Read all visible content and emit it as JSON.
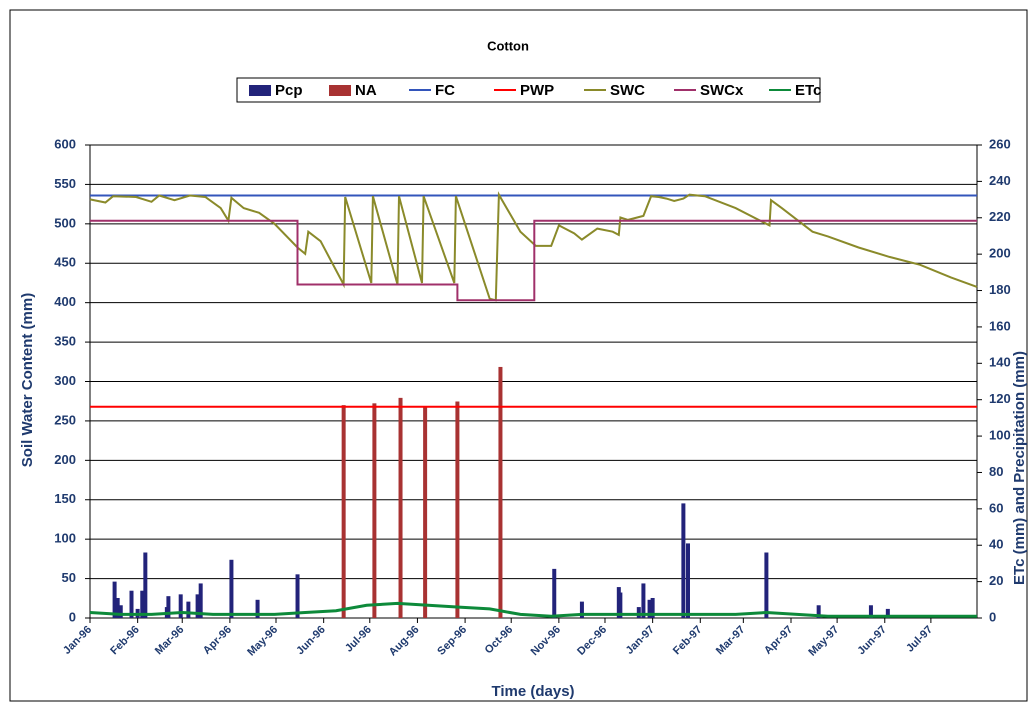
{
  "chart_data": {
    "type": "combo",
    "title": "Cotton",
    "xlabel": "Time (days)",
    "ylabel": "Soil Water Content (mm)",
    "y2label": "ETc (mm) and Precipitation (mm)",
    "xlim": [
      0,
      577
    ],
    "xticks": [
      {
        "value": 0,
        "label": "Jan-96"
      },
      {
        "value": 31,
        "label": "Feb-96"
      },
      {
        "value": 60,
        "label": "Mar-96"
      },
      {
        "value": 91,
        "label": "Apr-96"
      },
      {
        "value": 121,
        "label": "May-96"
      },
      {
        "value": 152,
        "label": "Jun-96"
      },
      {
        "value": 182,
        "label": "Jul-96"
      },
      {
        "value": 213,
        "label": "Aug-96"
      },
      {
        "value": 244,
        "label": "Sep-96"
      },
      {
        "value": 274,
        "label": "Oct-96"
      },
      {
        "value": 305,
        "label": "Nov-96"
      },
      {
        "value": 335,
        "label": "Dec-96"
      },
      {
        "value": 366,
        "label": "Jan-97"
      },
      {
        "value": 397,
        "label": "Feb-97"
      },
      {
        "value": 425,
        "label": "Mar-97"
      },
      {
        "value": 456,
        "label": "Apr-97"
      },
      {
        "value": 486,
        "label": "May-97"
      },
      {
        "value": 517,
        "label": "Jun-97"
      },
      {
        "value": 547,
        "label": "Jul-97"
      }
    ],
    "ylim": [
      0,
      600
    ],
    "yticks": [
      0,
      50,
      100,
      150,
      200,
      250,
      300,
      350,
      400,
      450,
      500,
      550,
      600
    ],
    "y2lim": [
      0,
      260
    ],
    "y2ticks": [
      0,
      20,
      40,
      60,
      80,
      100,
      120,
      140,
      160,
      180,
      200,
      220,
      240,
      260
    ],
    "grid": true,
    "legend": "top",
    "series": [
      {
        "name": "Pcp",
        "type": "bar",
        "axis": "y2",
        "color": "#22237a",
        "x": [
          16,
          18,
          20,
          27,
          31,
          34,
          36,
          50,
          51,
          59,
          64,
          70,
          72,
          92,
          109,
          135,
          302,
          320,
          344,
          345,
          357,
          360,
          364,
          366,
          386,
          389,
          440,
          474,
          508,
          519
        ],
        "values": [
          20,
          11,
          7,
          15,
          5,
          15,
          36,
          6,
          12,
          13,
          9,
          13,
          19,
          32,
          10,
          24,
          27,
          9,
          17,
          14,
          6,
          19,
          10,
          11,
          63,
          41,
          36,
          7,
          7,
          5
        ]
      },
      {
        "name": "NA",
        "type": "bar",
        "axis": "y2",
        "color": "#a83232",
        "x": [
          165,
          185,
          202,
          218,
          239,
          267
        ],
        "values": [
          117,
          118,
          121,
          116,
          119,
          138
        ]
      },
      {
        "name": "FC",
        "type": "line",
        "color": "#3355bb",
        "x": [
          0,
          577
        ],
        "values": [
          536,
          536
        ]
      },
      {
        "name": "PWP",
        "type": "line",
        "color": "#ff0000",
        "x": [
          0,
          577
        ],
        "values": [
          268,
          268
        ]
      },
      {
        "name": "SWC",
        "type": "line",
        "color": "#8a8a2a",
        "x": [
          0,
          10,
          15,
          30,
          40,
          45,
          55,
          65,
          75,
          85,
          90,
          92,
          100,
          110,
          120,
          135,
          140,
          142,
          150,
          165,
          166,
          183,
          184,
          200,
          201,
          216,
          217,
          237,
          238,
          260,
          264,
          266,
          280,
          290,
          300,
          305,
          315,
          320,
          330,
          340,
          344,
          345,
          350,
          360,
          365,
          370,
          375,
          380,
          386,
          390,
          400,
          420,
          440,
          442,
          443,
          450,
          470,
          480,
          500,
          520,
          540,
          560,
          577
        ],
        "values": [
          531,
          527,
          535,
          534,
          528,
          536,
          530,
          536,
          534,
          520,
          504,
          533,
          520,
          514,
          500,
          470,
          462,
          490,
          478,
          423,
          534,
          425,
          535,
          423,
          535,
          425,
          535,
          425,
          535,
          405,
          403,
          537,
          490,
          472,
          472,
          498,
          488,
          480,
          494,
          490,
          486,
          508,
          505,
          510,
          535,
          534,
          532,
          529,
          532,
          537,
          535,
          520,
          500,
          498,
          530,
          520,
          490,
          484,
          470,
          458,
          448,
          432,
          420
        ]
      },
      {
        "name": "SWCx",
        "type": "line",
        "color": "#a0306a",
        "x": [
          0,
          135,
          135,
          239,
          239,
          289,
          289,
          577
        ],
        "values": [
          504,
          504,
          423,
          423,
          403,
          403,
          504,
          504
        ]
      },
      {
        "name": "ETc",
        "type": "line",
        "axis": "y2",
        "color": "#0d8a3a",
        "x": [
          0,
          20,
          40,
          60,
          80,
          100,
          120,
          140,
          160,
          180,
          200,
          220,
          240,
          260,
          280,
          300,
          320,
          340,
          360,
          380,
          400,
          420,
          440,
          460,
          480,
          500,
          520,
          540,
          560,
          577
        ],
        "values": [
          3,
          2,
          2,
          3,
          2,
          2,
          2,
          3,
          4,
          7,
          8,
          7,
          6,
          5,
          2,
          1,
          2,
          2,
          2,
          2,
          2,
          2,
          3,
          2,
          1,
          1,
          1,
          1,
          1,
          1
        ]
      }
    ]
  }
}
